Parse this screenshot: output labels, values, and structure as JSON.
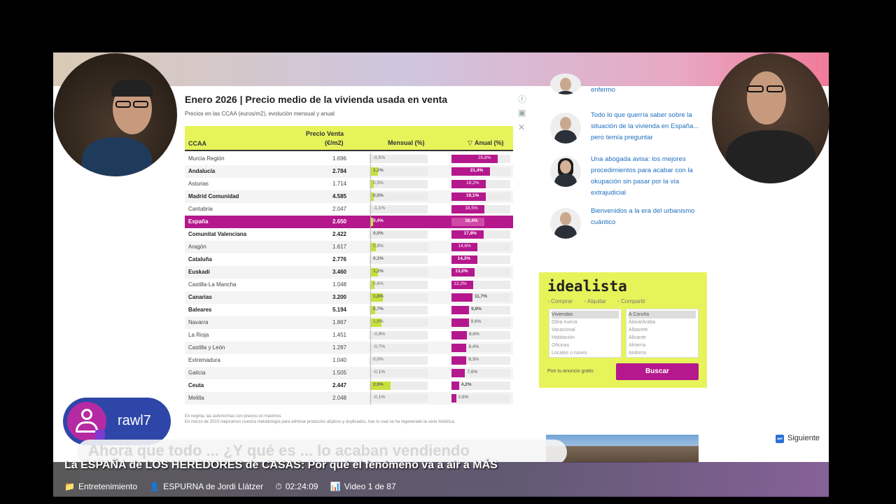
{
  "chart": {
    "title": "Enero 2026 | Precio medio de la vivienda usada en venta",
    "subtitle": "Precios en las CCAA (euros/m2), evolución mensual y anual",
    "col_region": "CCAA",
    "col_price_1": "Precio Venta",
    "col_price_2": "(€/m2)",
    "col_month": "Mensual (%)",
    "col_year": "Anual (%)",
    "sort_glyph": "▽",
    "note_1": "En negrita, las autonomías con precios en máximos",
    "note_2": "En marzo de 2023 mejoramos nuestra metodología para eliminar productos atípicos y duplicados, tras lo cual se ha regenerado la serie histórica."
  },
  "chart_data": {
    "type": "table",
    "columns": [
      "CCAA",
      "Precio Venta (€/m2)",
      "Mensual (%)",
      "Anual (%)"
    ],
    "rows": [
      {
        "region": "Murcia Región",
        "price": "1.696",
        "monthly": "-0,5%",
        "annual": "25,8%",
        "m": -0.5,
        "a": 25.8,
        "bold": false
      },
      {
        "region": "Andalucía",
        "price": "2.784",
        "monthly": "1,1%",
        "annual": "21,4%",
        "m": 1.1,
        "a": 21.4,
        "bold": true
      },
      {
        "region": "Asturias",
        "price": "1.714",
        "monthly": "0,5%",
        "annual": "19,2%",
        "m": 0.5,
        "a": 19.2,
        "bold": false
      },
      {
        "region": "Madrid Comunidad",
        "price": "4.585",
        "monthly": "0,5%",
        "annual": "19,1%",
        "m": 0.5,
        "a": 19.1,
        "bold": true
      },
      {
        "region": "Cantabria",
        "price": "2.047",
        "monthly": "-1,1%",
        "annual": "18,5%",
        "m": -1.1,
        "a": 18.5,
        "bold": false
      },
      {
        "region": "España",
        "price": "2.650",
        "monthly": "0,4%",
        "annual": "18,4%",
        "m": 0.4,
        "a": 18.4,
        "bold": true,
        "highlight": true
      },
      {
        "region": "Comunitat Valenciana",
        "price": "2.422",
        "monthly": "0,0%",
        "annual": "17,8%",
        "m": 0.0,
        "a": 17.8,
        "bold": true
      },
      {
        "region": "Aragón",
        "price": "1.617",
        "monthly": "0,8%",
        "annual": "14,6%",
        "m": 0.8,
        "a": 14.6,
        "bold": false
      },
      {
        "region": "Cataluña",
        "price": "2.776",
        "monthly": "0,1%",
        "annual": "14,3%",
        "m": 0.1,
        "a": 14.3,
        "bold": true
      },
      {
        "region": "Euskadi",
        "price": "3.460",
        "monthly": "1,1%",
        "annual": "13,0%",
        "m": 1.1,
        "a": 13.0,
        "bold": true
      },
      {
        "region": "Castilla-La Mancha",
        "price": "1.048",
        "monthly": "0,6%",
        "annual": "12,2%",
        "m": 0.6,
        "a": 12.2,
        "bold": false
      },
      {
        "region": "Canarias",
        "price": "3.200",
        "monthly": "1,8%",
        "annual": "11,7%",
        "m": 1.8,
        "a": 11.7,
        "bold": true
      },
      {
        "region": "Baleares",
        "price": "5.194",
        "monthly": "0,7%",
        "annual": "9,8%",
        "m": 0.7,
        "a": 9.8,
        "bold": true
      },
      {
        "region": "Navarra",
        "price": "1.867",
        "monthly": "1,6%",
        "annual": "9,6%",
        "m": 1.6,
        "a": 9.6,
        "bold": false
      },
      {
        "region": "La Rioja",
        "price": "1.451",
        "monthly": "-0,9%",
        "annual": "8,6%",
        "m": -0.9,
        "a": 8.6,
        "bold": false
      },
      {
        "region": "Castilla y León",
        "price": "1.287",
        "monthly": "-0,7%",
        "annual": "8,4%",
        "m": -0.7,
        "a": 8.4,
        "bold": false
      },
      {
        "region": "Extremadura",
        "price": "1.040",
        "monthly": "0,0%",
        "annual": "8,3%",
        "m": 0.0,
        "a": 8.3,
        "bold": false
      },
      {
        "region": "Galicia",
        "price": "1.505",
        "monthly": "-0,1%",
        "annual": "7,6%",
        "m": -0.1,
        "a": 7.6,
        "bold": false
      },
      {
        "region": "Ceuta",
        "price": "2.447",
        "monthly": "2,9%",
        "annual": "4,2%",
        "m": 2.9,
        "a": 4.2,
        "bold": true
      },
      {
        "region": "Melilla",
        "price": "2.048",
        "monthly": "-0,1%",
        "annual": "2,6%",
        "m": -0.1,
        "a": 2.6,
        "bold": false
      }
    ],
    "monthly_range": [
      -1.1,
      2.9
    ],
    "annual_range": [
      0,
      25.8
    ],
    "highlight_color": "#b5188d",
    "header_color": "#e6f45a"
  },
  "articles": [
    {
      "text": "enfermo"
    },
    {
      "text": "Todo lo que querría saber sobre la situación de la vivienda en España... pero temía preguntar"
    },
    {
      "text": "Una abogada avisa: los mejores procedimientos para acabar con la okupación sin pasar por la vía extrajudicial"
    },
    {
      "text": "Bienvenidos a la era del urbanismo cuántico"
    }
  ],
  "idealista": {
    "logo": "idealista",
    "radio_buy": "Comprar",
    "radio_rent": "Alquilar",
    "radio_share": "Compartir",
    "types": [
      "Viviendas",
      "Obra nueva",
      "Vacacional",
      "Habitación",
      "Oficinas",
      "Locales o naves"
    ],
    "provinces": [
      "A Coruña",
      "Álava/Araba",
      "Albacete",
      "Alicante",
      "Almería",
      "Andorra"
    ],
    "free_ad": "Pon tu anuncio gratis",
    "search_button": "Buscar"
  },
  "stream": {
    "username": "rawl7",
    "subtitle_text": "Ahora que todo ... ¿Y qué es ... lo acaban vendiendo",
    "video_title": "La ESPAÑA de LOS HEREDORES de CASAS: Por qué el fenómeno va a air a MÁS",
    "category": "Entretenimiento",
    "channel": "ESPURNA de Jordi Llátzer",
    "duration": "02:24:09",
    "position": "Video 1 de 87",
    "next_label": "Siguiente",
    "icons": {
      "category": "folder-icon",
      "channel": "person-icon",
      "duration": "clock-icon",
      "position": "chart-icon",
      "next": "next-track-icon"
    }
  }
}
